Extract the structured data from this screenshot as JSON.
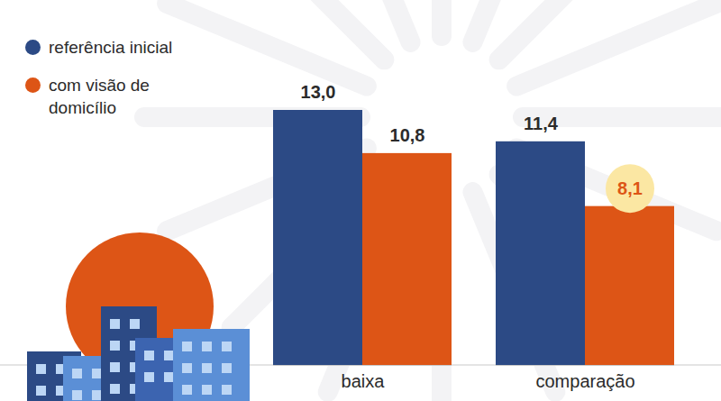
{
  "chart_data": {
    "type": "bar",
    "categories": [
      "baixa",
      "comparação"
    ],
    "series": [
      {
        "name": "referência inicial",
        "color": "#2c4a85",
        "values": [
          13.0,
          11.4
        ],
        "value_labels": [
          "13,0",
          "11,4"
        ]
      },
      {
        "name": "com visão de domicílio",
        "color": "#dd5516",
        "values": [
          10.8,
          8.1
        ],
        "value_labels": [
          "10,8",
          "8,1"
        ]
      }
    ],
    "ylim": [
      0,
      13
    ],
    "data_labels": true,
    "tick_labels": "x",
    "legend": "top-left"
  }
}
